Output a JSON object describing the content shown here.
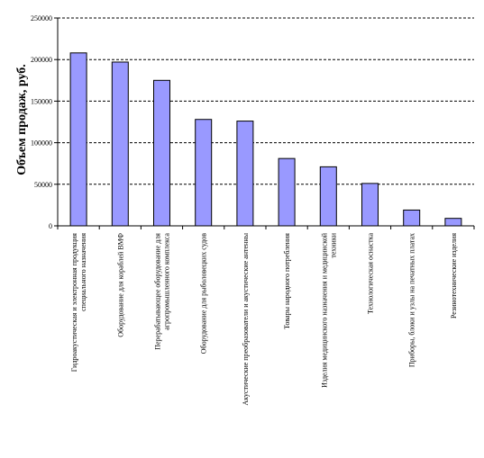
{
  "chart_data": {
    "type": "bar",
    "title": "",
    "xlabel": "",
    "ylabel": "Объем продаж, руб.",
    "ylim": [
      0,
      250000
    ],
    "yticks": [
      0,
      50000,
      100000,
      150000,
      200000,
      250000
    ],
    "grid": "horizontal-dashed",
    "legend": "none",
    "bar_color": "#9999ff",
    "bar_stroke": "#000000",
    "categories": [
      [
        "Гидроакустическая и электронная продукция",
        "специального назначения"
      ],
      [
        "Оборудование для кораблей ВМФ"
      ],
      [
        "Перерабатывающее оборудование для",
        "агропромышленного комплекса"
      ],
      [
        "Оборудование для рыболовецких судов"
      ],
      [
        "Акустические преобразователи и акустические антенны"
      ],
      [
        "Товары народного потребления"
      ],
      [
        "Изделия медицинского назначения и медицинской",
        "техники"
      ],
      [
        "Технологическая оснастка"
      ],
      [
        "Приборы, блоки и узлы на печатных платах"
      ],
      [
        "Резинотехнические изделия"
      ]
    ],
    "values": [
      208000,
      197000,
      175000,
      128000,
      126000,
      81000,
      71000,
      51000,
      19000,
      9000
    ]
  }
}
